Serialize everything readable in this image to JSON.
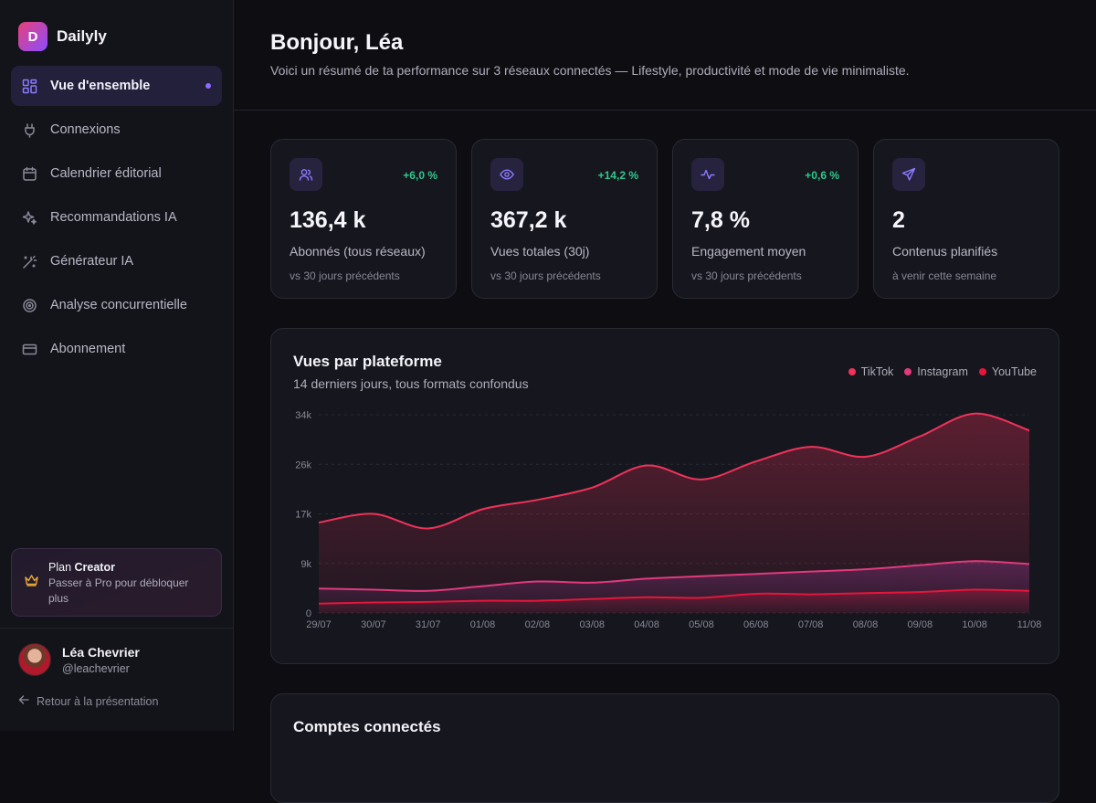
{
  "brand": {
    "logo_letter": "D",
    "name": "Dailyly"
  },
  "nav": [
    {
      "label": "Vue d'ensemble",
      "icon": "grid-icon",
      "active": true
    },
    {
      "label": "Connexions",
      "icon": "plug-icon"
    },
    {
      "label": "Calendrier éditorial",
      "icon": "calendar-icon"
    },
    {
      "label": "Recommandations IA",
      "icon": "sparkles-icon"
    },
    {
      "label": "Générateur IA",
      "icon": "magic-wand-icon"
    },
    {
      "label": "Analyse concurrentielle",
      "icon": "target-icon"
    },
    {
      "label": "Abonnement",
      "icon": "credit-card-icon"
    }
  ],
  "plan": {
    "prefix": "Plan",
    "name": "Creator",
    "cta": "Passer à Pro pour débloquer plus"
  },
  "user": {
    "name": "Léa Chevrier",
    "handle": "@leachevrier"
  },
  "back_link": "Retour à la présentation",
  "header": {
    "greeting": "Bonjour, Léa",
    "subtitle": "Voici un résumé de ta performance sur 3 réseaux connectés — Lifestyle, productivité et mode de vie minimaliste."
  },
  "kpis": [
    {
      "icon": "users-icon",
      "delta": "+6,0 %",
      "value": "136,4 k",
      "label": "Abonnés (tous réseaux)",
      "note": "vs 30 jours précédents"
    },
    {
      "icon": "eye-icon",
      "delta": "+14,2 %",
      "value": "367,2 k",
      "label": "Vues totales (30j)",
      "note": "vs 30 jours précédents"
    },
    {
      "icon": "activity-icon",
      "delta": "+0,6 %",
      "value": "7,8 %",
      "label": "Engagement moyen",
      "note": "vs 30 jours précédents"
    },
    {
      "icon": "send-icon",
      "delta": "",
      "value": "2",
      "label": "Contenus planifiés",
      "note": "à venir cette semaine"
    }
  ],
  "chart_data": {
    "type": "area",
    "title": "Vues par plateforme",
    "subtitle": "14 derniers jours, tous formats confondus",
    "x": [
      "29/07",
      "30/07",
      "31/07",
      "01/08",
      "02/08",
      "03/08",
      "04/08",
      "05/08",
      "06/08",
      "07/08",
      "08/08",
      "09/08",
      "10/08",
      "11/08"
    ],
    "y_ticks": [
      "0",
      "9k",
      "17k",
      "26k",
      "34k"
    ],
    "ylim": [
      0,
      34000
    ],
    "grid": true,
    "legend_position": "top-right",
    "series": [
      {
        "name": "TikTok",
        "color": "#f0325a",
        "values": [
          15500,
          17000,
          14500,
          17800,
          19400,
          21500,
          25300,
          22900,
          26000,
          28500,
          26800,
          30300,
          34200,
          31300
        ]
      },
      {
        "name": "Instagram",
        "color": "#e03a7c",
        "values": [
          4200,
          4000,
          3800,
          4600,
          5400,
          5200,
          5900,
          6300,
          6700,
          7100,
          7500,
          8200,
          8900,
          8400
        ]
      },
      {
        "name": "YouTube",
        "color": "#e5163a",
        "values": [
          1600,
          1800,
          1900,
          2100,
          2100,
          2400,
          2700,
          2600,
          3300,
          3200,
          3400,
          3600,
          4000,
          3800
        ]
      }
    ]
  },
  "accounts": {
    "title": "Comptes connectés"
  }
}
